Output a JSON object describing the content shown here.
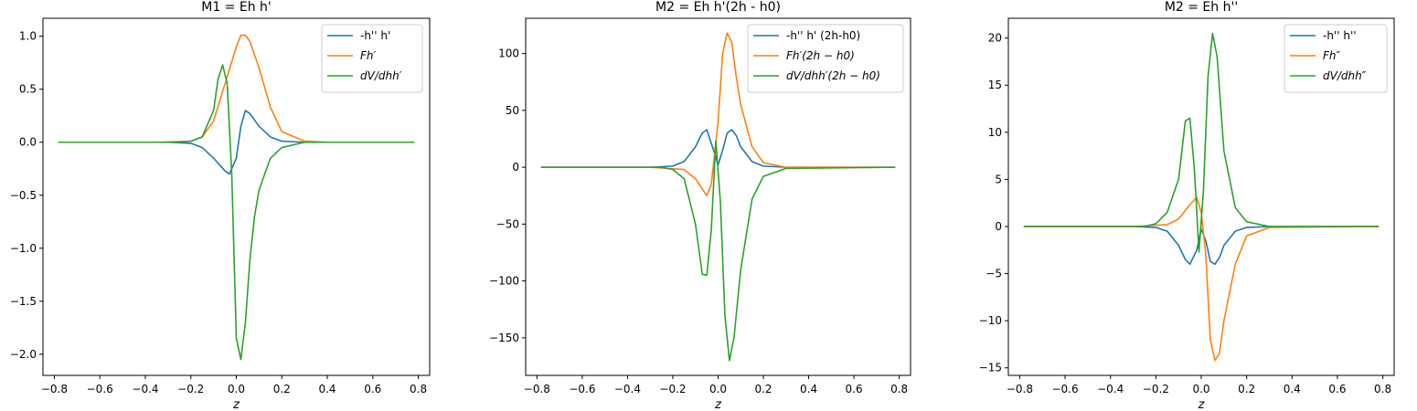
{
  "chart_data": [
    {
      "type": "line",
      "title": "M1 = Eh h'",
      "xlabel": "z",
      "ylabel": "",
      "xlim": [
        -0.85,
        0.85
      ],
      "ylim": [
        -2.2,
        1.17
      ],
      "xticks": [
        -0.8,
        -0.6,
        -0.4,
        -0.2,
        0.0,
        0.2,
        0.4,
        0.6,
        0.8
      ],
      "xtick_labels": [
        "−0.8",
        "−0.6",
        "−0.4",
        "−0.2",
        "0.0",
        "0.2",
        "0.4",
        "0.6",
        "0.8"
      ],
      "yticks": [
        -2.0,
        -1.5,
        -1.0,
        -0.5,
        0.0,
        0.5,
        1.0
      ],
      "ytick_labels": [
        "−2.0",
        "−1.5",
        "−1.0",
        "−0.5",
        "0.0",
        "0.5",
        "1.0"
      ],
      "legend": "top-right",
      "grid": false,
      "series": [
        {
          "name": "-h'' h'",
          "color": "#1f77b4",
          "x": [
            -0.78,
            -0.3,
            -0.2,
            -0.15,
            -0.1,
            -0.05,
            -0.03,
            0.0,
            0.02,
            0.04,
            0.06,
            0.1,
            0.15,
            0.2,
            0.3,
            0.78
          ],
          "y": [
            0.0,
            0.0,
            -0.01,
            -0.05,
            -0.15,
            -0.27,
            -0.3,
            -0.15,
            0.15,
            0.3,
            0.27,
            0.15,
            0.05,
            0.01,
            0.0,
            0.0
          ]
        },
        {
          "name": "Fh′",
          "color": "#ff7f0e",
          "x": [
            -0.78,
            -0.35,
            -0.2,
            -0.15,
            -0.1,
            -0.05,
            0.0,
            0.02,
            0.04,
            0.06,
            0.1,
            0.15,
            0.2,
            0.3,
            0.4,
            0.78
          ],
          "y": [
            0.0,
            0.0,
            0.01,
            0.05,
            0.2,
            0.55,
            0.9,
            1.01,
            1.01,
            0.95,
            0.7,
            0.33,
            0.1,
            0.01,
            0.0,
            0.0
          ]
        },
        {
          "name": "dV/dhh′",
          "color": "#2ca02c",
          "x": [
            -0.78,
            -0.25,
            -0.2,
            -0.15,
            -0.1,
            -0.08,
            -0.06,
            -0.04,
            -0.02,
            0.0,
            0.02,
            0.04,
            0.06,
            0.08,
            0.1,
            0.15,
            0.2,
            0.3,
            0.78
          ],
          "y": [
            0.0,
            0.0,
            0.01,
            0.05,
            0.3,
            0.6,
            0.73,
            0.55,
            -0.3,
            -1.85,
            -2.05,
            -1.7,
            -1.1,
            -0.7,
            -0.45,
            -0.15,
            -0.05,
            0.0,
            0.0
          ]
        }
      ]
    },
    {
      "type": "line",
      "title": "M2 = Eh h'(2h - h0)",
      "xlabel": "z",
      "ylabel": "",
      "xlim": [
        -0.85,
        0.85
      ],
      "ylim": [
        -183,
        131
      ],
      "xticks": [
        -0.8,
        -0.6,
        -0.4,
        -0.2,
        0.0,
        0.2,
        0.4,
        0.6,
        0.8
      ],
      "xtick_labels": [
        "−0.8",
        "−0.6",
        "−0.4",
        "−0.2",
        "0.0",
        "0.2",
        "0.4",
        "0.6",
        "0.8"
      ],
      "yticks": [
        -150,
        -100,
        -50,
        0,
        50,
        100
      ],
      "ytick_labels": [
        "−150",
        "−100",
        "−50",
        "0",
        "50",
        "100"
      ],
      "legend": "top-right",
      "grid": false,
      "series": [
        {
          "name": "-h'' h' (2h-h0)",
          "color": "#1f77b4",
          "x": [
            -0.78,
            -0.3,
            -0.2,
            -0.15,
            -0.1,
            -0.07,
            -0.05,
            -0.02,
            0.0,
            0.02,
            0.04,
            0.06,
            0.08,
            0.1,
            0.15,
            0.2,
            0.3,
            0.78
          ],
          "y": [
            0.0,
            0.0,
            1,
            5,
            18,
            30,
            33,
            15,
            2,
            15,
            30,
            33,
            28,
            18,
            5,
            1,
            0.0,
            0.0
          ]
        },
        {
          "name": "Fh′(2h − h0)",
          "color": "#ff7f0e",
          "x": [
            -0.78,
            -0.3,
            -0.15,
            -0.1,
            -0.05,
            -0.03,
            0.0,
            0.02,
            0.04,
            0.06,
            0.08,
            0.1,
            0.15,
            0.2,
            0.3,
            0.78
          ],
          "y": [
            0.0,
            0.0,
            -2,
            -10,
            -25,
            -15,
            40,
            100,
            118,
            110,
            80,
            55,
            18,
            4,
            0.0,
            0.0
          ]
        },
        {
          "name": "dV/dhh′(2h − h0)",
          "color": "#2ca02c",
          "x": [
            -0.78,
            -0.25,
            -0.2,
            -0.15,
            -0.1,
            -0.07,
            -0.05,
            -0.03,
            -0.01,
            0.01,
            0.03,
            0.05,
            0.07,
            0.1,
            0.15,
            0.2,
            0.3,
            0.78
          ],
          "y": [
            0.0,
            0.0,
            -2,
            -10,
            -50,
            -94,
            -95,
            -55,
            23,
            -30,
            -130,
            -170,
            -150,
            -90,
            -28,
            -8,
            -1,
            0.0
          ]
        }
      ]
    },
    {
      "type": "line",
      "title": "M2 = Eh h''",
      "xlabel": "z",
      "ylabel": "",
      "xlim": [
        -0.85,
        0.85
      ],
      "ylim": [
        -15.8,
        22.1
      ],
      "xticks": [
        -0.8,
        -0.6,
        -0.4,
        -0.2,
        0.0,
        0.2,
        0.4,
        0.6,
        0.8
      ],
      "xtick_labels": [
        "−0.8",
        "−0.6",
        "−0.4",
        "−0.2",
        "0.0",
        "0.2",
        "0.4",
        "0.6",
        "0.8"
      ],
      "yticks": [
        -15,
        -10,
        -5,
        0,
        5,
        10,
        15,
        20
      ],
      "ytick_labels": [
        "−15",
        "−10",
        "−5",
        "0",
        "5",
        "10",
        "15",
        "20"
      ],
      "legend": "top-right",
      "grid": false,
      "series": [
        {
          "name": "-h'' h''",
          "color": "#1f77b4",
          "x": [
            -0.78,
            -0.3,
            -0.2,
            -0.15,
            -0.1,
            -0.07,
            -0.05,
            -0.02,
            0.0,
            0.02,
            0.04,
            0.06,
            0.08,
            0.1,
            0.15,
            0.2,
            0.3,
            0.78
          ],
          "y": [
            0.0,
            0.0,
            -0.1,
            -0.5,
            -2,
            -3.5,
            -4,
            -2.5,
            -0.3,
            -1.5,
            -3.7,
            -4,
            -3.3,
            -2,
            -0.5,
            -0.1,
            0.0,
            0.0
          ]
        },
        {
          "name": "Fh″",
          "color": "#ff7f0e",
          "x": [
            -0.78,
            -0.3,
            -0.15,
            -0.1,
            -0.05,
            -0.02,
            0.0,
            0.02,
            0.04,
            0.06,
            0.08,
            0.1,
            0.15,
            0.2,
            0.3,
            0.78
          ],
          "y": [
            0.0,
            0.0,
            0.2,
            0.8,
            2.3,
            3.1,
            1.5,
            -3,
            -12,
            -14.2,
            -13.5,
            -10,
            -4,
            -1,
            -0.1,
            0.0
          ]
        },
        {
          "name": "dV/dhh″",
          "color": "#2ca02c",
          "x": [
            -0.78,
            -0.25,
            -0.2,
            -0.15,
            -0.1,
            -0.07,
            -0.05,
            -0.03,
            -0.01,
            0.01,
            0.03,
            0.05,
            0.07,
            0.1,
            0.15,
            0.2,
            0.3,
            0.78
          ],
          "y": [
            0.0,
            0.0,
            0.3,
            1.5,
            5,
            11.2,
            11.5,
            6,
            -2.7,
            4,
            16,
            20.5,
            18,
            8,
            2,
            0.5,
            0.0,
            0.0
          ]
        }
      ]
    }
  ]
}
